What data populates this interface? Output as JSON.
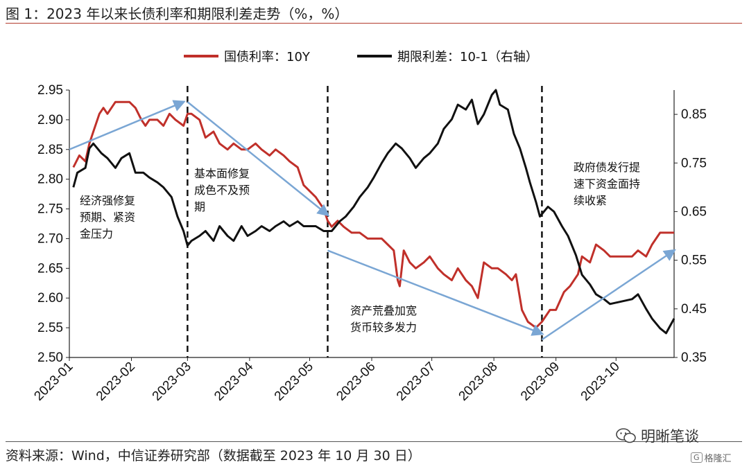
{
  "figure": {
    "title": "图 1：2023 年以来长债利率和期限利差走势（%，%）",
    "source": "资料来源：Wind，中信证券研究部（数据截至 2023 年 10 月 30 日）",
    "brand": "明晰笔谈",
    "brand2": "格隆汇"
  },
  "colors": {
    "yield_line": "#c0302a",
    "spread_line": "#111111",
    "arrow": "#7aa6d4",
    "title_rule": "#b23a2c"
  },
  "chart_data": {
    "type": "line",
    "x_tick_labels": [
      "2023-01",
      "2023-02",
      "2023-03",
      "2023-04",
      "2023-05",
      "2023-06",
      "2023-07",
      "2023-08",
      "2023-09",
      "2023-10"
    ],
    "x_range": [
      "2023-01-01",
      "2023-10-30"
    ],
    "y_left": {
      "range": [
        2.5,
        2.95
      ],
      "ticks": [
        "2.50",
        "2.55",
        "2.60",
        "2.65",
        "2.70",
        "2.75",
        "2.80",
        "2.85",
        "2.90",
        "2.95"
      ]
    },
    "y_right": {
      "range": [
        0.35,
        0.9
      ],
      "ticks": [
        "0.35",
        "0.45",
        "0.55",
        "0.65",
        "0.75",
        "0.85"
      ]
    },
    "legend": {
      "placement": "top-center",
      "items": [
        {
          "label": "国债利率：10Y",
          "series": "yield"
        },
        {
          "label": "期限利差：10-1（右轴）",
          "series": "spread"
        }
      ]
    },
    "series": [
      {
        "key": "yield",
        "name": "国债利率：10Y",
        "axis": "left",
        "points": [
          [
            "2023-01-03",
            2.82
          ],
          [
            "2023-01-06",
            2.84
          ],
          [
            "2023-01-09",
            2.83
          ],
          [
            "2023-01-11",
            2.86
          ],
          [
            "2023-01-13",
            2.88
          ],
          [
            "2023-01-16",
            2.91
          ],
          [
            "2023-01-18",
            2.92
          ],
          [
            "2023-01-20",
            2.91
          ],
          [
            "2023-01-24",
            2.93
          ],
          [
            "2023-01-27",
            2.93
          ],
          [
            "2023-01-31",
            2.93
          ],
          [
            "2023-02-03",
            2.92
          ],
          [
            "2023-02-06",
            2.9
          ],
          [
            "2023-02-08",
            2.89
          ],
          [
            "2023-02-10",
            2.9
          ],
          [
            "2023-02-14",
            2.9
          ],
          [
            "2023-02-17",
            2.89
          ],
          [
            "2023-02-20",
            2.91
          ],
          [
            "2023-02-23",
            2.9
          ],
          [
            "2023-02-27",
            2.89
          ],
          [
            "2023-03-01",
            2.91
          ],
          [
            "2023-03-03",
            2.91
          ],
          [
            "2023-03-07",
            2.9
          ],
          [
            "2023-03-10",
            2.87
          ],
          [
            "2023-03-14",
            2.88
          ],
          [
            "2023-03-17",
            2.86
          ],
          [
            "2023-03-21",
            2.85
          ],
          [
            "2023-03-24",
            2.86
          ],
          [
            "2023-03-28",
            2.85
          ],
          [
            "2023-03-31",
            2.85
          ],
          [
            "2023-04-04",
            2.86
          ],
          [
            "2023-04-07",
            2.85
          ],
          [
            "2023-04-11",
            2.84
          ],
          [
            "2023-04-14",
            2.85
          ],
          [
            "2023-04-18",
            2.84
          ],
          [
            "2023-04-21",
            2.83
          ],
          [
            "2023-04-25",
            2.82
          ],
          [
            "2023-04-28",
            2.79
          ],
          [
            "2023-05-04",
            2.77
          ],
          [
            "2023-05-08",
            2.75
          ],
          [
            "2023-05-10",
            2.73
          ],
          [
            "2023-05-12",
            2.72
          ],
          [
            "2023-05-15",
            2.73
          ],
          [
            "2023-05-18",
            2.72
          ],
          [
            "2023-05-22",
            2.71
          ],
          [
            "2023-05-26",
            2.71
          ],
          [
            "2023-05-30",
            2.7
          ],
          [
            "2023-06-02",
            2.7
          ],
          [
            "2023-06-06",
            2.7
          ],
          [
            "2023-06-09",
            2.69
          ],
          [
            "2023-06-12",
            2.68
          ],
          [
            "2023-06-14",
            2.63
          ],
          [
            "2023-06-15",
            2.62
          ],
          [
            "2023-06-17",
            2.68
          ],
          [
            "2023-06-20",
            2.66
          ],
          [
            "2023-06-23",
            2.65
          ],
          [
            "2023-06-27",
            2.66
          ],
          [
            "2023-06-30",
            2.67
          ],
          [
            "2023-07-04",
            2.65
          ],
          [
            "2023-07-07",
            2.64
          ],
          [
            "2023-07-11",
            2.63
          ],
          [
            "2023-07-14",
            2.65
          ],
          [
            "2023-07-18",
            2.63
          ],
          [
            "2023-07-21",
            2.62
          ],
          [
            "2023-07-24",
            2.6
          ],
          [
            "2023-07-27",
            2.66
          ],
          [
            "2023-07-31",
            2.65
          ],
          [
            "2023-08-03",
            2.65
          ],
          [
            "2023-08-07",
            2.64
          ],
          [
            "2023-08-10",
            2.63
          ],
          [
            "2023-08-12",
            2.64
          ],
          [
            "2023-08-15",
            2.58
          ],
          [
            "2023-08-18",
            2.56
          ],
          [
            "2023-08-22",
            2.55
          ],
          [
            "2023-08-25",
            2.56
          ],
          [
            "2023-08-29",
            2.58
          ],
          [
            "2023-09-01",
            2.58
          ],
          [
            "2023-09-05",
            2.61
          ],
          [
            "2023-09-08",
            2.62
          ],
          [
            "2023-09-12",
            2.64
          ],
          [
            "2023-09-14",
            2.67
          ],
          [
            "2023-09-18",
            2.66
          ],
          [
            "2023-09-21",
            2.69
          ],
          [
            "2023-09-25",
            2.68
          ],
          [
            "2023-09-28",
            2.67
          ],
          [
            "2023-10-04",
            2.67
          ],
          [
            "2023-10-09",
            2.67
          ],
          [
            "2023-10-12",
            2.68
          ],
          [
            "2023-10-16",
            2.67
          ],
          [
            "2023-10-19",
            2.69
          ],
          [
            "2023-10-23",
            2.71
          ],
          [
            "2023-10-26",
            2.71
          ],
          [
            "2023-10-30",
            2.71
          ]
        ]
      },
      {
        "key": "spread",
        "name": "期限利差：10-1（右轴）",
        "axis": "right",
        "points": [
          [
            "2023-01-03",
            0.7
          ],
          [
            "2023-01-05",
            0.73
          ],
          [
            "2023-01-09",
            0.74
          ],
          [
            "2023-01-11",
            0.78
          ],
          [
            "2023-01-13",
            0.79
          ],
          [
            "2023-01-17",
            0.77
          ],
          [
            "2023-01-20",
            0.76
          ],
          [
            "2023-01-24",
            0.74
          ],
          [
            "2023-01-27",
            0.76
          ],
          [
            "2023-01-31",
            0.77
          ],
          [
            "2023-02-03",
            0.73
          ],
          [
            "2023-02-07",
            0.73
          ],
          [
            "2023-02-10",
            0.72
          ],
          [
            "2023-02-14",
            0.71
          ],
          [
            "2023-02-17",
            0.7
          ],
          [
            "2023-02-21",
            0.68
          ],
          [
            "2023-02-24",
            0.64
          ],
          [
            "2023-02-27",
            0.61
          ],
          [
            "2023-03-01",
            0.58
          ],
          [
            "2023-03-03",
            0.59
          ],
          [
            "2023-03-07",
            0.6
          ],
          [
            "2023-03-10",
            0.61
          ],
          [
            "2023-03-14",
            0.59
          ],
          [
            "2023-03-17",
            0.62
          ],
          [
            "2023-03-21",
            0.6
          ],
          [
            "2023-03-24",
            0.59
          ],
          [
            "2023-03-28",
            0.62
          ],
          [
            "2023-03-31",
            0.6
          ],
          [
            "2023-04-04",
            0.61
          ],
          [
            "2023-04-07",
            0.62
          ],
          [
            "2023-04-11",
            0.61
          ],
          [
            "2023-04-14",
            0.62
          ],
          [
            "2023-04-18",
            0.63
          ],
          [
            "2023-04-21",
            0.62
          ],
          [
            "2023-04-25",
            0.63
          ],
          [
            "2023-04-28",
            0.62
          ],
          [
            "2023-05-04",
            0.62
          ],
          [
            "2023-05-08",
            0.61
          ],
          [
            "2023-05-12",
            0.61
          ],
          [
            "2023-05-16",
            0.63
          ],
          [
            "2023-05-19",
            0.64
          ],
          [
            "2023-05-23",
            0.66
          ],
          [
            "2023-05-26",
            0.68
          ],
          [
            "2023-05-30",
            0.7
          ],
          [
            "2023-06-02",
            0.72
          ],
          [
            "2023-06-06",
            0.75
          ],
          [
            "2023-06-09",
            0.77
          ],
          [
            "2023-06-13",
            0.79
          ],
          [
            "2023-06-16",
            0.78
          ],
          [
            "2023-06-20",
            0.76
          ],
          [
            "2023-06-23",
            0.74
          ],
          [
            "2023-06-27",
            0.76
          ],
          [
            "2023-06-30",
            0.77
          ],
          [
            "2023-07-04",
            0.79
          ],
          [
            "2023-07-07",
            0.82
          ],
          [
            "2023-07-11",
            0.84
          ],
          [
            "2023-07-14",
            0.87
          ],
          [
            "2023-07-18",
            0.86
          ],
          [
            "2023-07-21",
            0.88
          ],
          [
            "2023-07-24",
            0.83
          ],
          [
            "2023-07-27",
            0.85
          ],
          [
            "2023-07-31",
            0.89
          ],
          [
            "2023-08-02",
            0.9
          ],
          [
            "2023-08-04",
            0.87
          ],
          [
            "2023-08-08",
            0.86
          ],
          [
            "2023-08-11",
            0.81
          ],
          [
            "2023-08-14",
            0.78
          ],
          [
            "2023-08-17",
            0.74
          ],
          [
            "2023-08-19",
            0.71
          ],
          [
            "2023-08-22",
            0.67
          ],
          [
            "2023-08-24",
            0.64
          ],
          [
            "2023-08-28",
            0.66
          ],
          [
            "2023-08-31",
            0.65
          ],
          [
            "2023-09-04",
            0.62
          ],
          [
            "2023-09-07",
            0.6
          ],
          [
            "2023-09-11",
            0.56
          ],
          [
            "2023-09-14",
            0.52
          ],
          [
            "2023-09-18",
            0.5
          ],
          [
            "2023-09-21",
            0.48
          ],
          [
            "2023-09-25",
            0.47
          ],
          [
            "2023-09-28",
            0.46
          ],
          [
            "2023-10-09",
            0.47
          ],
          [
            "2023-10-12",
            0.48
          ],
          [
            "2023-10-16",
            0.45
          ],
          [
            "2023-10-19",
            0.43
          ],
          [
            "2023-10-23",
            0.41
          ],
          [
            "2023-10-26",
            0.4
          ],
          [
            "2023-10-30",
            0.43
          ]
        ]
      }
    ],
    "dividers": [
      "2023-03-01",
      "2023-05-10",
      "2023-08-25"
    ],
    "annotations": [
      {
        "lines": [
          "经济强修复",
          "预期、紧资",
          "金压力"
        ]
      },
      {
        "lines": [
          "基本面修复",
          "成色不及预",
          "期"
        ]
      },
      {
        "lines": [
          "资产荒叠加宽",
          "货币较多发力"
        ]
      },
      {
        "lines": [
          "政府债发行提",
          "速下资金面持",
          "续收紧"
        ]
      }
    ],
    "trend_arrows": [
      {
        "from": [
          "2023-01-01",
          2.85
        ],
        "to": [
          "2023-02-27",
          2.93
        ]
      },
      {
        "from": [
          "2023-03-01",
          2.93
        ],
        "to": [
          "2023-05-10",
          2.74
        ]
      },
      {
        "from": [
          "2023-05-10",
          2.68
        ],
        "to": [
          "2023-08-25",
          2.54
        ]
      },
      {
        "from": [
          "2023-08-25",
          2.53
        ],
        "to": [
          "2023-10-30",
          2.68
        ]
      }
    ]
  }
}
